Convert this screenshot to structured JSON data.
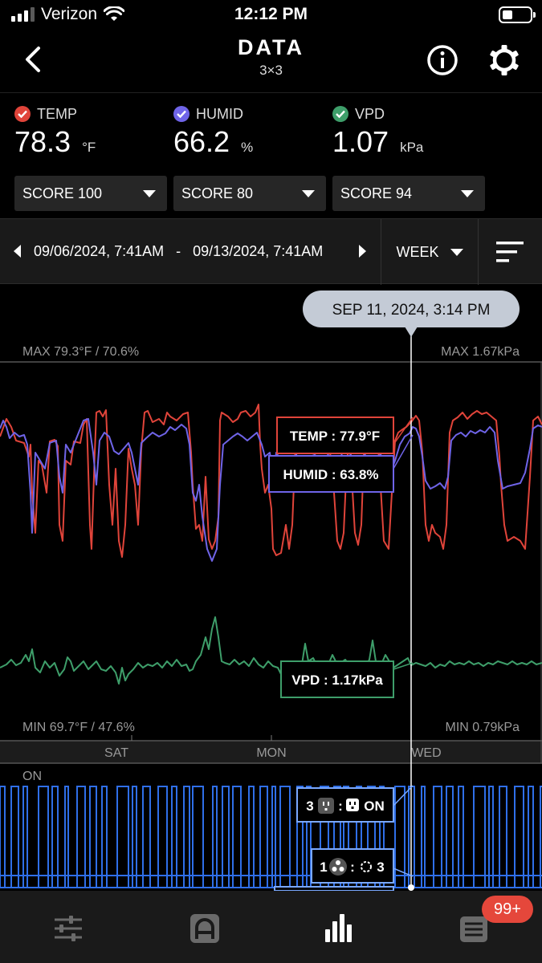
{
  "status_bar": {
    "carrier": "Verizon",
    "time": "12:12 PM"
  },
  "header": {
    "title": "DATA",
    "subtitle": "3×3",
    "back_icon": "chevron-left-icon",
    "info_icon": "info-icon",
    "settings_icon": "gear-icon"
  },
  "readings": [
    {
      "label": "TEMP",
      "value": "78.3",
      "unit": "°F",
      "color": "#e0443a",
      "score": "SCORE 100"
    },
    {
      "label": "HUMID",
      "value": "66.2",
      "unit": "%",
      "color": "#6f64e8",
      "score": "SCORE 80"
    },
    {
      "label": "VPD",
      "value": "1.07",
      "unit": "kPa",
      "color": "#3e9e6a",
      "score": "SCORE 94"
    }
  ],
  "range": {
    "start": "09/06/2024, 7:41AM",
    "separator": "-",
    "end": "09/13/2024, 7:41AM",
    "period": "WEEK"
  },
  "chart": {
    "cursor_label": "SEP 11, 2024, 3:14 PM",
    "max_left": "MAX 79.3°F / 70.6%",
    "max_right": "MAX 1.67kPa",
    "min_left": "MIN 69.7°F / 47.6%",
    "min_right": "MIN 0.79kPa",
    "day_labels": [
      "SAT",
      "MON",
      "WED"
    ],
    "tooltips": {
      "temp": "TEMP :  77.9°F",
      "humid": "HUMID :  63.8%",
      "vpd": "VPD :  1.17kPa"
    },
    "device_state_label": "ON",
    "device_tooltips": {
      "outlet": {
        "number": "3",
        "state": "ON"
      },
      "fan": {
        "number": "1",
        "level": "3"
      }
    },
    "colors": {
      "temp": "#e0443a",
      "humid": "#6f64e8",
      "vpd": "#3e9e6a",
      "device": "#2f6fe8",
      "device_light": "#7aa8ff"
    }
  },
  "tabbar": {
    "badge": "99+",
    "icons": [
      "sliders-icon",
      "app-a-icon",
      "chart-bars-icon",
      "list-icon"
    ]
  }
}
